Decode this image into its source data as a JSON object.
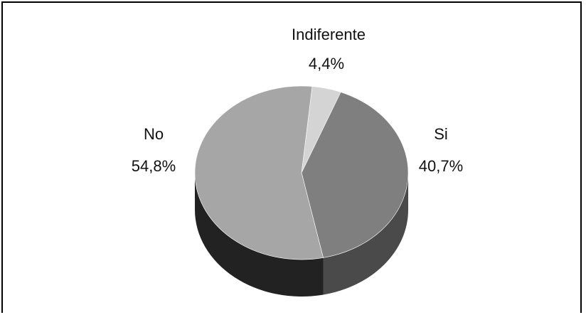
{
  "chart_data": {
    "type": "pie",
    "style": "3d",
    "slices": [
      {
        "label": "Indiferente",
        "value": 4.4,
        "display": "4,4%",
        "top_color": "#d4d4d4",
        "side_color": "#6a6a6a"
      },
      {
        "label": "Si",
        "value": 40.7,
        "display": "40,7%",
        "top_color": "#7f7f7f",
        "side_color": "#4a4a4a"
      },
      {
        "label": "No",
        "value": 54.8,
        "display": "54,8%",
        "top_color": "#a6a6a6",
        "side_color": "#222222"
      }
    ]
  }
}
